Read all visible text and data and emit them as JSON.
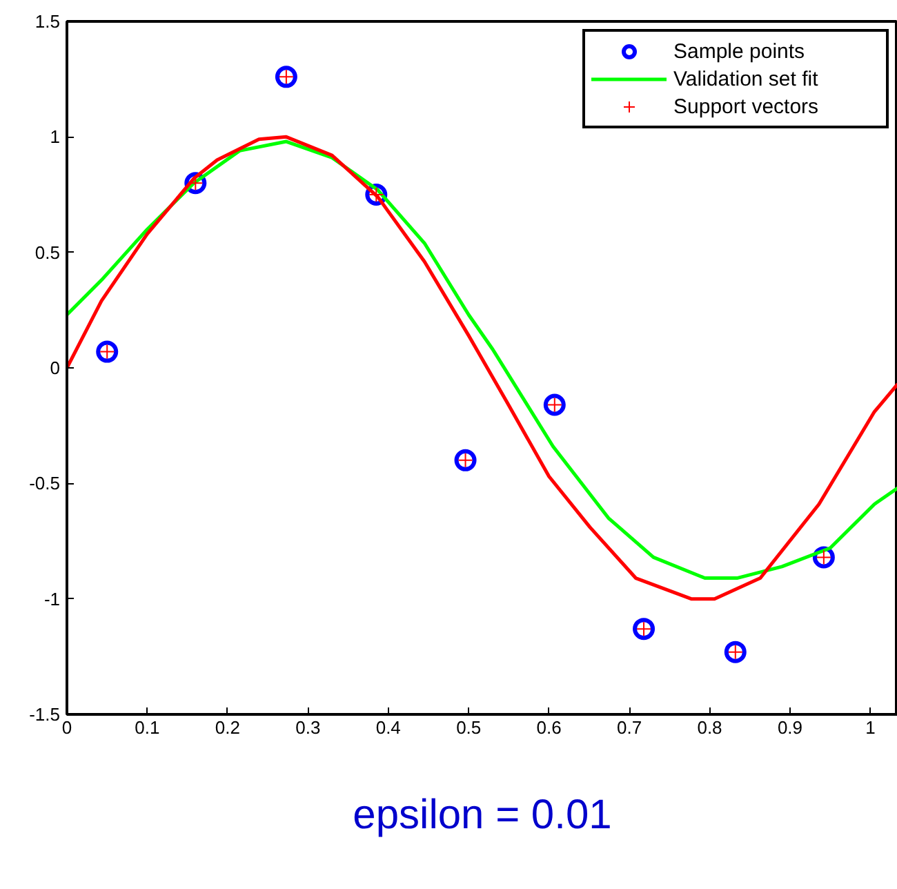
{
  "chart_data": {
    "type": "line",
    "annotations": [
      "epsilon = 0.01"
    ],
    "xlim": [
      0,
      1.034
    ],
    "ylim": [
      -1.5,
      1.5
    ],
    "xticks": [
      0,
      0.1,
      0.2,
      0.3,
      0.4,
      0.5,
      0.6,
      0.7,
      0.8,
      0.9,
      1
    ],
    "yticks": [
      -1.5,
      -1,
      -0.5,
      0,
      0.5,
      1,
      1.5
    ],
    "grid": false,
    "legend": "top right",
    "series": [
      {
        "name": "Sample points",
        "type": "scatter",
        "marker": "circle",
        "color": "#0000ff",
        "x": [
          0.05,
          0.16,
          0.273,
          0.385,
          0.496,
          0.607,
          0.718,
          0.832,
          0.942
        ],
        "values": [
          0.07,
          0.8,
          1.26,
          0.75,
          -0.4,
          -0.16,
          -1.13,
          -1.23,
          -0.82
        ]
      },
      {
        "name": "Validation set fit",
        "type": "line",
        "color": "#00ff00",
        "x": [
          0,
          0.043,
          0.1,
          0.158,
          0.215,
          0.273,
          0.33,
          0.387,
          0.445,
          0.5,
          0.53,
          0.605,
          0.674,
          0.73,
          0.794,
          0.834,
          0.89,
          0.95,
          1.005,
          1.034
        ],
        "values": [
          0.23,
          0.38,
          0.6,
          0.8,
          0.94,
          0.98,
          0.91,
          0.77,
          0.54,
          0.23,
          0.08,
          -0.34,
          -0.65,
          -0.82,
          -0.91,
          -0.91,
          -0.86,
          -0.78,
          -0.59,
          -0.52
        ]
      },
      {
        "name": "Support vectors",
        "type": "scatter",
        "marker": "cross",
        "color": "#ff0000",
        "x": [
          0.05,
          0.16,
          0.273,
          0.385,
          0.496,
          0.607,
          0.718,
          0.832,
          0.942
        ],
        "values": [
          0.07,
          0.8,
          1.26,
          0.75,
          -0.4,
          -0.16,
          -1.13,
          -1.23,
          -0.82
        ]
      },
      {
        "color": "#ff0000",
        "x": [
          0,
          0.043,
          0.1,
          0.158,
          0.187,
          0.239,
          0.273,
          0.33,
          0.387,
          0.445,
          0.5,
          0.548,
          0.6,
          0.651,
          0.708,
          0.777,
          0.806,
          0.863,
          0.936,
          1.005,
          1.034
        ],
        "values": [
          0,
          0.29,
          0.58,
          0.82,
          0.9,
          0.99,
          1.0,
          0.92,
          0.74,
          0.46,
          0.14,
          -0.15,
          -0.47,
          -0.69,
          -0.91,
          -1.0,
          -1.0,
          -0.91,
          -0.59,
          -0.19,
          -0.07
        ]
      }
    ]
  }
}
